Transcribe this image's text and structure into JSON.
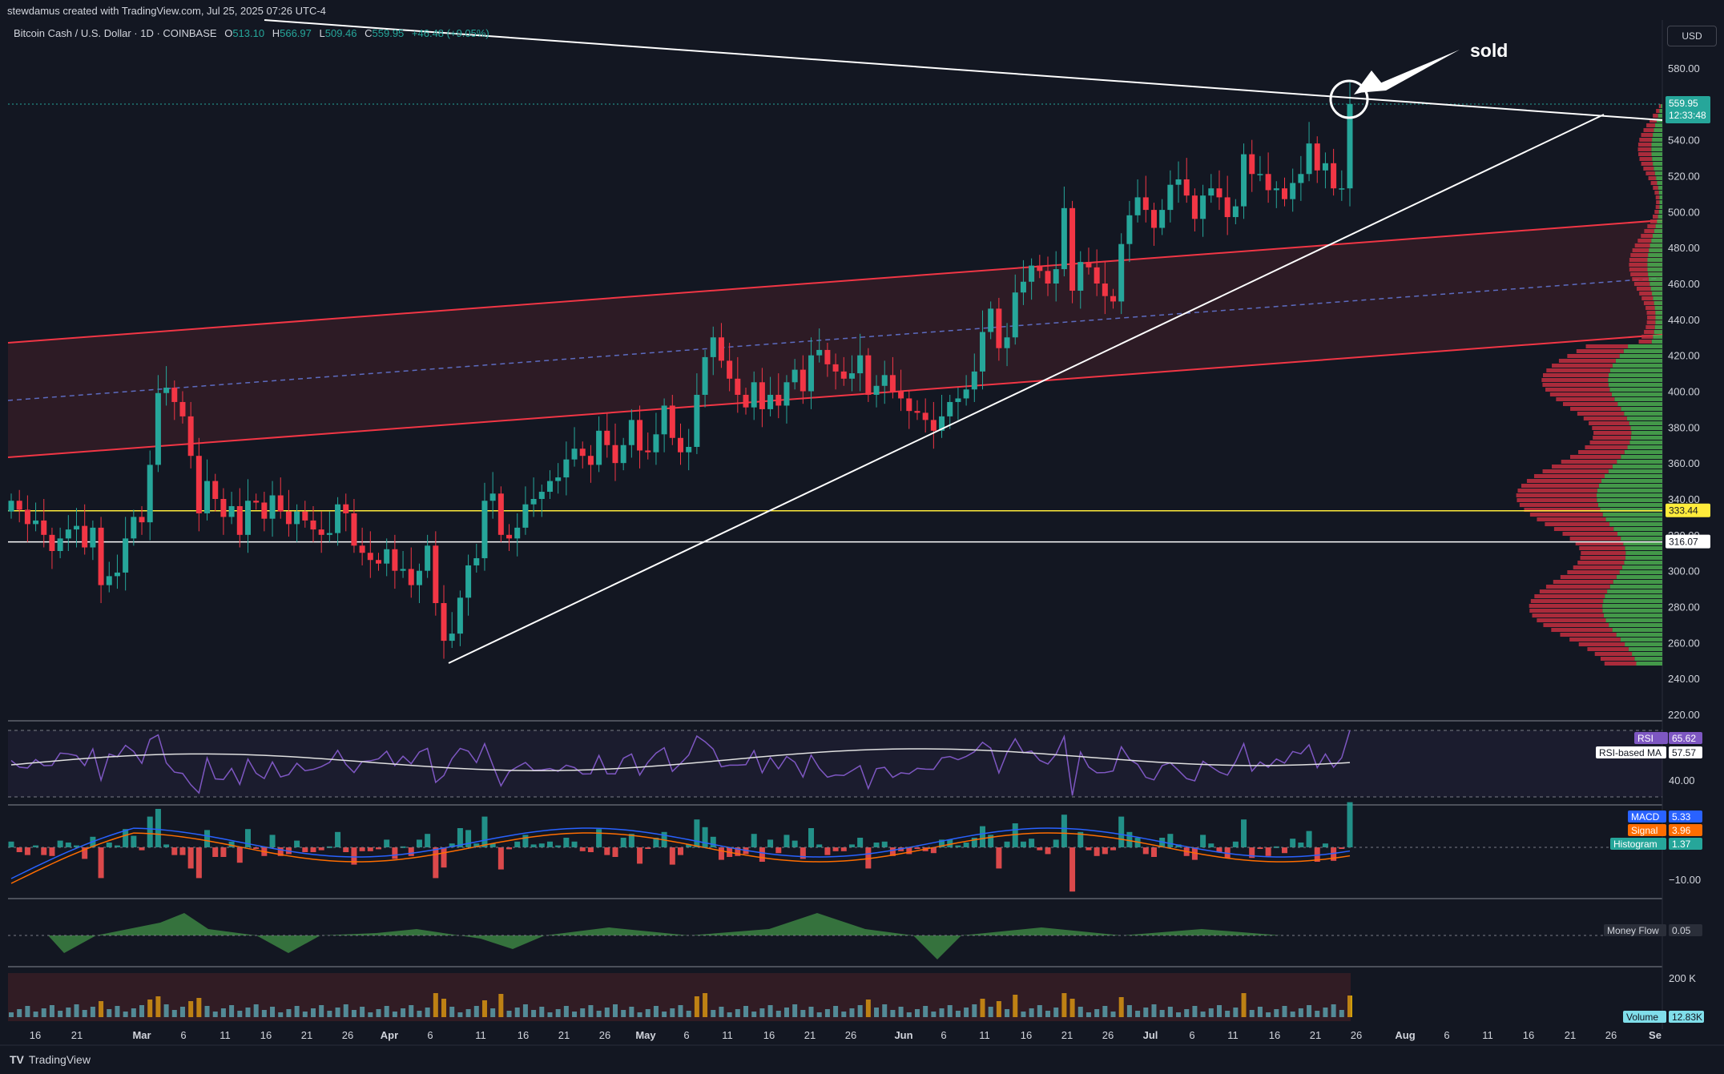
{
  "header": {
    "attribution": "stewdamus created with TradingView.com, Jul 25, 2025 07:26 UTC-4",
    "symbol": "Bitcoin Cash / U.S. Dollar · 1D · COINBASE",
    "open_label": "O",
    "open": "513.10",
    "high_label": "H",
    "high": "566.97",
    "low_label": "L",
    "low": "509.46",
    "close_label": "C",
    "close": "559.95",
    "change": "+46.48 (+9.05%)",
    "currency_button": "USD"
  },
  "annotation": {
    "text": "sold"
  },
  "brand": {
    "name": "TradingView"
  },
  "colors": {
    "background": "#131722",
    "up": "#26a69a",
    "down": "#f23645",
    "channel": "#f23645",
    "support_yellow": "#ffeb3b",
    "rsi": "#7e57c2",
    "macd": "#2962ff",
    "signal": "#ff6d00",
    "money_flow_up": "#4caf50",
    "money_flow_down": "#ef5350"
  },
  "chart_data": {
    "type": "candlestick",
    "title": "Bitcoin Cash / U.S. Dollar · 1D · COINBASE",
    "price_axis": {
      "ylim": [
        230,
        590
      ],
      "ticks": [
        "580.00",
        "560.00",
        "540.00",
        "520.00",
        "500.00",
        "480.00",
        "460.00",
        "440.00",
        "420.00",
        "400.00",
        "380.00",
        "360.00",
        "340.00",
        "320.00",
        "300.00",
        "280.00",
        "260.00",
        "240.00",
        "220.00"
      ]
    },
    "price_labels": {
      "last_price": "559.95",
      "countdown": "12:33:48",
      "yellow_level": "333.44",
      "white_level": "316.07"
    },
    "x_axis": {
      "labels": [
        "16",
        "21",
        "Mar",
        "6",
        "11",
        "16",
        "21",
        "26",
        "Apr",
        "6",
        "11",
        "16",
        "21",
        "26",
        "May",
        "6",
        "11",
        "16",
        "21",
        "26",
        "Jun",
        "6",
        "11",
        "16",
        "21",
        "26",
        "Jul",
        "6",
        "11",
        "16",
        "21",
        "26",
        "Aug",
        "6",
        "11",
        "16",
        "21",
        "26",
        "Se"
      ]
    },
    "candles_close": [
      339,
      334,
      326,
      328,
      320,
      311,
      318,
      323,
      325,
      313,
      324,
      292,
      297,
      299,
      318,
      330,
      327,
      359,
      399,
      402,
      394,
      386,
      364,
      332,
      350,
      340,
      330,
      336,
      320,
      339,
      338,
      329,
      342,
      333,
      326,
      333,
      328,
      323,
      320,
      321,
      337,
      332,
      314,
      310,
      306,
      304,
      312,
      300,
      301,
      292,
      300,
      314,
      282,
      261,
      265,
      285,
      303,
      307,
      339,
      343,
      320,
      318,
      324,
      337,
      340,
      344,
      350,
      352,
      362,
      368,
      364,
      359,
      378,
      370,
      360,
      370,
      384,
      367,
      366,
      376,
      392,
      374,
      366,
      369,
      398,
      419,
      430,
      417,
      407,
      398,
      391,
      405,
      390,
      398,
      392,
      405,
      412,
      400,
      420,
      423,
      415,
      411,
      407,
      410,
      420,
      398,
      403,
      409,
      400,
      396,
      389,
      388,
      384,
      378,
      386,
      394,
      396,
      401,
      411,
      433,
      446,
      424,
      430,
      455,
      461,
      470,
      467,
      460,
      468,
      502,
      456,
      472,
      469,
      460,
      453,
      450,
      482,
      498,
      508,
      501,
      491,
      501,
      515,
      518,
      509,
      496,
      509,
      513,
      508,
      497,
      503,
      532,
      521,
      521,
      512,
      513,
      507,
      516,
      521,
      538,
      523,
      527,
      513,
      513,
      560
    ],
    "candles_open": [
      333,
      339,
      334,
      326,
      328,
      320,
      311,
      318,
      323,
      325,
      313,
      324,
      292,
      297,
      299,
      318,
      330,
      327,
      359,
      399,
      402,
      394,
      386,
      364,
      332,
      350,
      340,
      330,
      336,
      320,
      339,
      338,
      329,
      342,
      333,
      326,
      333,
      328,
      323,
      320,
      321,
      337,
      332,
      314,
      310,
      306,
      304,
      312,
      300,
      301,
      292,
      300,
      314,
      282,
      261,
      265,
      285,
      303,
      307,
      339,
      343,
      320,
      318,
      324,
      337,
      340,
      344,
      350,
      352,
      362,
      368,
      364,
      359,
      378,
      370,
      360,
      370,
      384,
      367,
      366,
      376,
      392,
      374,
      366,
      369,
      398,
      419,
      430,
      417,
      407,
      398,
      391,
      405,
      390,
      398,
      392,
      405,
      412,
      400,
      420,
      423,
      415,
      411,
      407,
      410,
      420,
      398,
      403,
      409,
      400,
      396,
      389,
      388,
      384,
      378,
      386,
      394,
      396,
      401,
      411,
      433,
      446,
      424,
      430,
      455,
      461,
      470,
      467,
      460,
      468,
      502,
      456,
      472,
      469,
      460,
      453,
      450,
      482,
      498,
      508,
      501,
      491,
      501,
      515,
      518,
      509,
      496,
      509,
      513,
      508,
      497,
      503,
      532,
      521,
      521,
      512,
      513,
      507,
      516,
      521,
      538,
      523,
      527,
      513,
      513
    ],
    "key_levels": [
      {
        "name": "333.44",
        "value": 333.44,
        "color": "#ffeb3b"
      },
      {
        "name": "316.07",
        "value": 316.07,
        "color": "#ffffff"
      }
    ],
    "indicators": {
      "rsi": {
        "label": "RSI",
        "value": "65.62",
        "ma_label": "RSI-based MA",
        "ma_value": "57.57",
        "tick": "40.00"
      },
      "macd": {
        "label": "MACD",
        "value": "5.33",
        "signal_label": "Signal",
        "signal_value": "3.96",
        "hist_label": "Histogram",
        "hist_value": "1.37",
        "tick": "−10.00"
      },
      "money_flow": {
        "label": "Money Flow",
        "value": "0.05"
      },
      "volume": {
        "label": "Volume",
        "value": "12.83K",
        "tick": "200 K"
      }
    },
    "grid": false
  }
}
